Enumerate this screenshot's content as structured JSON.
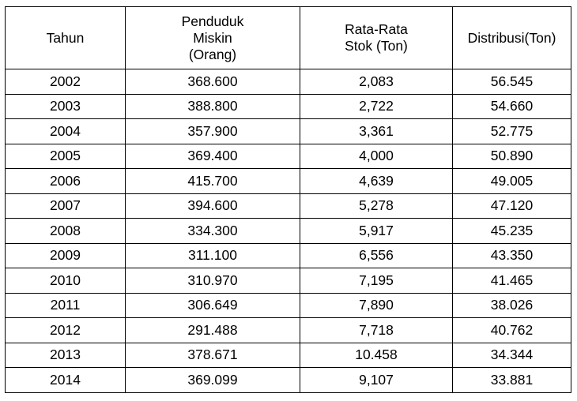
{
  "table": {
    "headers": [
      [
        "Tahun"
      ],
      [
        "Penduduk",
        "Miskin",
        "(Orang)"
      ],
      [
        "Rata-Rata",
        "Stok (Ton)"
      ],
      [
        "Distribusi(Ton)"
      ]
    ],
    "rows": [
      [
        "2002",
        "368.600",
        "2,083",
        "56.545"
      ],
      [
        "2003",
        "388.800",
        "2,722",
        "54.660"
      ],
      [
        "2004",
        "357.900",
        "3,361",
        "52.775"
      ],
      [
        "2005",
        "369.400",
        "4,000",
        "50.890"
      ],
      [
        "2006",
        "415.700",
        "4,639",
        "49.005"
      ],
      [
        "2007",
        "394.600",
        "5,278",
        "47.120"
      ],
      [
        "2008",
        "334.300",
        "5,917",
        "45.235"
      ],
      [
        "2009",
        "311.100",
        "6,556",
        "43.350"
      ],
      [
        "2010",
        "310.970",
        "7,195",
        "41.465"
      ],
      [
        "2011",
        "306.649",
        "7,890",
        "38.026"
      ],
      [
        "2012",
        "291.488",
        "7,718",
        "40.762"
      ],
      [
        "2013",
        "378.671",
        "10.458",
        "34.344"
      ],
      [
        "2014",
        "369.099",
        "9,107",
        "33.881"
      ]
    ]
  }
}
